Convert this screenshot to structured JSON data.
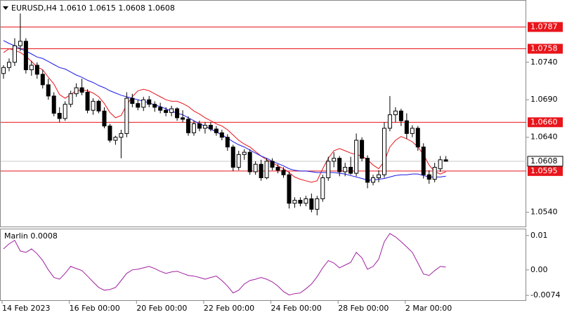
{
  "chart_data": [
    {
      "type": "candlestick",
      "title": "EURUSD,H4  1.0610 1.0615 1.0608 1.0608",
      "categories": [
        "14 Feb 2023",
        null,
        null,
        null,
        null,
        null,
        null,
        null,
        null,
        null,
        null,
        null,
        "16 Feb 00:00",
        null,
        null,
        null,
        null,
        null,
        null,
        null,
        null,
        null,
        null,
        null,
        "20 Feb 00:00",
        null,
        null,
        null,
        null,
        null,
        null,
        null,
        null,
        null,
        null,
        null,
        "22 Feb 00:00",
        null,
        null,
        null,
        null,
        null,
        null,
        null,
        null,
        null,
        null,
        null,
        "24 Feb 00:00",
        null,
        null,
        null,
        null,
        null,
        null,
        null,
        null,
        null,
        null,
        null,
        "28 Feb 00:00",
        null,
        null,
        null,
        null,
        null,
        null,
        null,
        null,
        null,
        null,
        null,
        "2 Mar 00:00",
        null,
        null,
        null,
        null,
        null,
        null,
        null
      ],
      "open": [
        1.0725,
        1.0733,
        1.074,
        1.0762,
        1.0768,
        1.073,
        1.0736,
        1.0724,
        1.071,
        1.0695,
        1.0672,
        1.0665,
        1.0684,
        1.0698,
        1.0706,
        1.07,
        1.0676,
        1.0688,
        1.0675,
        1.0655,
        1.0636,
        1.064,
        1.0645,
        1.0692,
        1.0685,
        1.068,
        1.069,
        1.0684,
        1.068,
        1.0676,
        1.0673,
        1.0678,
        1.0666,
        1.0664,
        1.0646,
        1.0658,
        1.0652,
        1.0656,
        1.0651,
        1.0646,
        1.064,
        1.0627,
        1.06,
        1.0617,
        1.062,
        1.0594,
        1.0604,
        1.0586,
        1.0608,
        1.06,
        1.0596,
        1.059,
        1.0552,
        1.0556,
        1.0552,
        1.0558,
        1.0544,
        1.0558,
        1.0586,
        1.0608,
        1.0612,
        1.0594,
        1.06,
        1.0592,
        1.0636,
        1.0612,
        1.058,
        1.0586,
        1.059,
        1.0652,
        1.067,
        1.0675,
        1.0662,
        1.0645,
        1.0652,
        1.0627,
        1.059,
        1.0584,
        1.0598,
        1.061
      ],
      "high": [
        1.0736,
        1.0745,
        1.0772,
        1.0805,
        1.0772,
        1.0742,
        1.074,
        1.073,
        1.0718,
        1.07,
        1.068,
        1.0688,
        1.0702,
        1.0712,
        1.0718,
        1.0704,
        1.0692,
        1.069,
        1.068,
        1.0658,
        1.0642,
        1.065,
        1.07,
        1.0698,
        1.069,
        1.0694,
        1.0695,
        1.0688,
        1.0686,
        1.068,
        1.0682,
        1.068,
        1.0676,
        1.0668,
        1.0662,
        1.0662,
        1.066,
        1.066,
        1.0655,
        1.065,
        1.0644,
        1.063,
        1.0622,
        1.0624,
        1.0624,
        1.0608,
        1.061,
        1.0612,
        1.0612,
        1.0604,
        1.06,
        1.0594,
        1.056,
        1.056,
        1.0562,
        1.0565,
        1.0562,
        1.059,
        1.0614,
        1.062,
        1.0615,
        1.0606,
        1.0614,
        1.0645,
        1.064,
        1.0616,
        1.059,
        1.0596,
        1.066,
        1.0695,
        1.068,
        1.0678,
        1.0672,
        1.0656,
        1.0655,
        1.0632,
        1.0596,
        1.0606,
        1.0615,
        1.0615
      ],
      "low": [
        1.0718,
        1.0728,
        1.0735,
        1.0755,
        1.0725,
        1.0722,
        1.0718,
        1.0705,
        1.069,
        1.0668,
        1.066,
        1.0662,
        1.068,
        1.0694,
        1.0696,
        1.0672,
        1.067,
        1.0672,
        1.0652,
        1.0633,
        1.063,
        1.0612,
        1.064,
        1.068,
        1.0676,
        1.0675,
        1.068,
        1.0674,
        1.0672,
        1.0668,
        1.0668,
        1.0662,
        1.066,
        1.0642,
        1.0642,
        1.0648,
        1.0645,
        1.0648,
        1.0642,
        1.0636,
        1.0622,
        1.0595,
        1.0596,
        1.061,
        1.059,
        1.059,
        1.0582,
        1.0584,
        1.0596,
        1.0592,
        1.0586,
        1.0545,
        1.0546,
        1.0548,
        1.0548,
        1.054,
        1.0536,
        1.0554,
        1.0582,
        1.06,
        1.0588,
        1.0588,
        1.059,
        1.0588,
        1.0608,
        1.0572,
        1.0576,
        1.058,
        1.0586,
        1.0648,
        1.066,
        1.0655,
        1.0638,
        1.064,
        1.0622,
        1.0585,
        1.0578,
        1.058,
        1.0594,
        1.0608
      ],
      "close": [
        1.0733,
        1.074,
        1.0762,
        1.0768,
        1.073,
        1.0736,
        1.0724,
        1.071,
        1.0695,
        1.0672,
        1.0665,
        1.0684,
        1.0698,
        1.0706,
        1.07,
        1.0676,
        1.0688,
        1.0675,
        1.0655,
        1.0636,
        1.064,
        1.0645,
        1.0692,
        1.0685,
        1.068,
        1.069,
        1.0684,
        1.068,
        1.0676,
        1.0673,
        1.0678,
        1.0666,
        1.0664,
        1.0646,
        1.0658,
        1.0652,
        1.0656,
        1.0651,
        1.0646,
        1.064,
        1.0627,
        1.06,
        1.0617,
        1.062,
        1.0594,
        1.0604,
        1.0586,
        1.0608,
        1.06,
        1.0596,
        1.059,
        1.0552,
        1.0556,
        1.0552,
        1.0558,
        1.0544,
        1.0558,
        1.0586,
        1.0608,
        1.0612,
        1.0594,
        1.06,
        1.0592,
        1.0636,
        1.0612,
        1.058,
        1.0586,
        1.059,
        1.0652,
        1.067,
        1.0675,
        1.0662,
        1.0645,
        1.0652,
        1.0627,
        1.059,
        1.0584,
        1.06,
        1.061,
        1.0608
      ],
      "up_color": "#ffffff",
      "down_color": "#000000",
      "series": [
        {
          "color": "#e8151b",
          "values": [
            1.0753,
            1.0758,
            1.0756,
            1.0753,
            1.0748,
            1.0741,
            1.0734,
            1.073,
            1.072,
            1.0711,
            1.0697,
            1.0692,
            1.0697,
            1.0702,
            1.0703,
            1.0702,
            1.0699,
            1.0694,
            1.0685,
            1.0673,
            1.0666,
            1.0669,
            1.0683,
            1.0694,
            1.0702,
            1.0704,
            1.0702,
            1.0698,
            1.0694,
            1.069,
            1.0688,
            1.0688,
            1.0685,
            1.0681,
            1.0675,
            1.0671,
            1.0666,
            1.0662,
            1.0658,
            1.0655,
            1.065,
            1.0643,
            1.0636,
            1.0631,
            1.0627,
            1.0621,
            1.0615,
            1.061,
            1.0606,
            1.0602,
            1.0598,
            1.0593,
            1.0587,
            1.0584,
            1.0582,
            1.058,
            1.0582,
            1.0598,
            1.0612,
            1.0622,
            1.0625,
            1.0622,
            1.0619,
            1.0617,
            1.0615,
            1.061,
            1.0603,
            1.0598,
            1.0608,
            1.0627,
            1.0636,
            1.0641,
            1.0638,
            1.0634,
            1.0627,
            1.0617,
            1.0603,
            1.0594,
            1.0591,
            1.0594
          ]
        },
        {
          "color": "#1a1ae6",
          "values": [
            1.0769,
            1.0765,
            1.0762,
            1.0758,
            1.0755,
            1.0751,
            1.0747,
            1.0745,
            1.0741,
            1.0737,
            1.0733,
            1.0731,
            1.0727,
            1.0723,
            1.072,
            1.0716,
            1.0713,
            1.0709,
            1.0706,
            1.0702,
            1.0699,
            1.0696,
            1.0694,
            1.0692,
            1.069,
            1.0688,
            1.0686,
            1.0683,
            1.0681,
            1.0678,
            1.0675,
            1.0672,
            1.067,
            1.0666,
            1.0662,
            1.0658,
            1.0655,
            1.0651,
            1.0647,
            1.0643,
            1.0639,
            1.0634,
            1.063,
            1.0627,
            1.0623,
            1.0619,
            1.0615,
            1.0612,
            1.0608,
            1.0605,
            1.0602,
            1.0598,
            1.0596,
            1.0595,
            1.0595,
            1.0594,
            1.0593,
            1.0593,
            1.0593,
            1.0593,
            1.0592,
            1.0591,
            1.0589,
            1.0587,
            1.0585,
            1.0583,
            1.0583,
            1.0584,
            1.0585,
            1.0587,
            1.0589,
            1.059,
            1.059,
            1.0591,
            1.0591,
            1.0589,
            1.0587,
            1.0587,
            1.0587,
            1.0588
          ]
        }
      ],
      "levels": [
        1.0787,
        1.0758,
        {
          "value": 1.066,
          "label": "1.0660"
        },
        1.0595
      ],
      "level_color": "#e8151b",
      "last_price": 1.0608,
      "ylim": [
        1.0521,
        1.0823
      ],
      "yticks": [
        {
          "value": 1.054,
          "label": "1.0540"
        },
        {
          "value": 1.064,
          "label": "1.0640"
        },
        {
          "value": 1.069,
          "label": "1.0690"
        },
        {
          "value": 1.074,
          "label": "1.0740"
        }
      ]
    },
    {
      "type": "line",
      "title": "Marlin 0.0008",
      "color": "#a020a0",
      "values": [
        0.0061,
        0.0076,
        0.0086,
        0.0055,
        0.0051,
        0.0061,
        0.0047,
        0.0027,
        0,
        -0.0022,
        -0.0027,
        -0.001,
        0.001,
        0.0004,
        -0.0002,
        -0.0018,
        -0.0035,
        -0.0051,
        -0.0059,
        -0.0057,
        -0.0051,
        -0.0031,
        -0.001,
        0,
        0.0002,
        0.0006,
        0.001,
        0.0004,
        -0.0004,
        -0.001,
        -0.0006,
        -0.0004,
        -0.001,
        -0.0016,
        -0.0018,
        -0.0022,
        -0.0027,
        -0.0022,
        -0.0018,
        -0.0031,
        -0.0047,
        -0.0067,
        -0.0059,
        -0.0041,
        -0.0031,
        -0.0027,
        -0.0022,
        -0.0027,
        -0.0035,
        -0.0047,
        -0.0063,
        -0.0073,
        -0.0069,
        -0.0067,
        -0.0055,
        -0.0041,
        -0.002,
        0.0006,
        0.0027,
        0.002,
        0.0006,
        0.0014,
        0.0022,
        0.0051,
        0.0035,
        0.0002,
        0.001,
        0.0031,
        0.0082,
        0.0106,
        0.0096,
        0.0082,
        0.0067,
        0.0051,
        0.002,
        -0.0012,
        -0.0016,
        -0.0002,
        0.001,
        0.0008
      ],
      "ylim": [
        -0.0088,
        0.012
      ],
      "yticks": [
        0.01,
        {
          "value": 0,
          "label": "0.00"
        },
        -0.0074
      ]
    }
  ]
}
